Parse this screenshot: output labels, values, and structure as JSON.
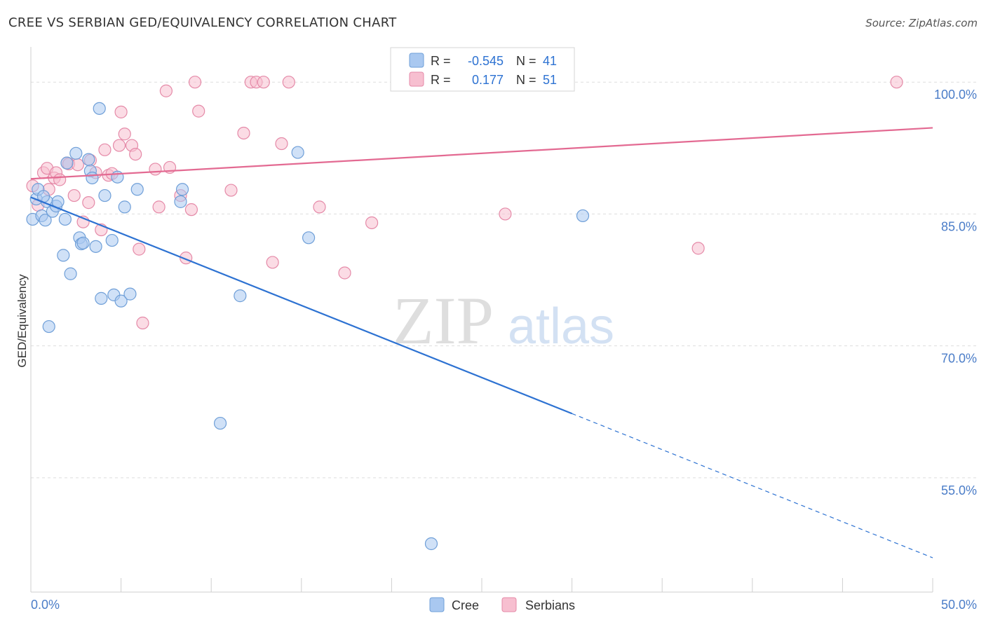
{
  "title": "CREE VS SERBIAN GED/EQUIVALENCY CORRELATION CHART",
  "source": "Source: ZipAtlas.com",
  "watermark": {
    "zip": "ZIP",
    "atlas": "atlas"
  },
  "colors": {
    "cree_fill": "#a9c8f0",
    "cree_stroke": "#6f9fd8",
    "cree_line": "#2d72d2",
    "serb_fill": "#f7bfd0",
    "serb_stroke": "#e58aa8",
    "serb_line": "#e36a92",
    "tick_label": "#4b7dc8",
    "grid": "#dddddd"
  },
  "legend": {
    "rows": [
      {
        "r_label": "R =",
        "r_value": "-0.545",
        "n_label": "N =",
        "n_value": "41"
      },
      {
        "r_label": "R =",
        "r_value": "0.177",
        "n_label": "N =",
        "n_value": "51"
      }
    ]
  },
  "bottom_legend": [
    "Cree",
    "Serbians"
  ],
  "chart_data": {
    "type": "scatter",
    "title": "CREE VS SERBIAN GED/EQUIVALENCY CORRELATION CHART",
    "xlabel": "",
    "ylabel": "GED/Equivalency",
    "xlim": [
      0,
      50
    ],
    "ylim": [
      42,
      104
    ],
    "x_tick_labels": [
      "0.0%",
      "50.0%"
    ],
    "y_ticks": [
      100,
      85,
      70,
      55
    ],
    "y_tick_labels": [
      "100.0%",
      "85.0%",
      "70.0%",
      "55.0%"
    ],
    "grid": true,
    "legend_position": "top-center",
    "series": [
      {
        "name": "Cree",
        "x": [
          0.1,
          0.3,
          0.4,
          0.6,
          0.8,
          0.9,
          1.0,
          1.2,
          1.4,
          1.5,
          1.8,
          1.9,
          2.2,
          2.5,
          2.7,
          2.8,
          2.9,
          3.2,
          3.3,
          3.4,
          3.6,
          3.8,
          3.9,
          4.1,
          4.5,
          4.6,
          4.8,
          5.0,
          5.2,
          5.5,
          5.9,
          8.3,
          8.4,
          10.5,
          11.6,
          14.8,
          15.4,
          22.2,
          30.6,
          0.7,
          2.0
        ],
        "y": [
          84.4,
          86.7,
          87.8,
          84.8,
          84.3,
          86.4,
          72.2,
          85.3,
          85.9,
          86.4,
          80.3,
          84.4,
          78.2,
          91.9,
          82.3,
          81.6,
          81.7,
          91.2,
          89.9,
          89.1,
          81.3,
          97.0,
          75.4,
          87.1,
          82.0,
          75.8,
          89.2,
          75.1,
          85.8,
          75.9,
          87.8,
          86.4,
          87.8,
          61.2,
          75.7,
          92.0,
          82.3,
          47.5,
          84.8,
          87.0,
          90.8
        ]
      },
      {
        "name": "Serbians",
        "x": [
          0.1,
          0.4,
          0.7,
          0.9,
          1.0,
          1.3,
          1.4,
          1.6,
          2.0,
          2.1,
          2.4,
          2.6,
          2.9,
          3.2,
          3.3,
          3.6,
          3.9,
          4.1,
          4.3,
          4.5,
          4.9,
          5.0,
          5.2,
          5.6,
          5.8,
          6.0,
          6.2,
          6.9,
          7.1,
          7.5,
          7.7,
          8.3,
          8.6,
          8.9,
          9.1,
          9.3,
          11.1,
          11.8,
          12.2,
          12.5,
          12.9,
          13.4,
          13.9,
          14.3,
          16.0,
          17.4,
          18.9,
          20.5,
          26.3,
          37.0,
          48.0
        ],
        "y": [
          88.2,
          86.0,
          89.7,
          90.2,
          87.8,
          89.1,
          89.7,
          88.9,
          90.8,
          90.7,
          87.1,
          90.6,
          84.1,
          86.3,
          91.1,
          89.7,
          83.2,
          92.3,
          89.4,
          89.6,
          92.8,
          96.6,
          94.1,
          92.8,
          91.8,
          81.0,
          72.6,
          90.1,
          85.8,
          99.0,
          90.3,
          87.1,
          80.0,
          85.5,
          100.0,
          96.7,
          87.7,
          94.2,
          100.0,
          100.0,
          100.0,
          79.5,
          93.0,
          100.0,
          85.8,
          78.3,
          84.0,
          100.0,
          85.0,
          81.1,
          100.0
        ]
      }
    ],
    "trend_lines": [
      {
        "name": "Cree",
        "x": [
          0,
          30.0
        ],
        "y": [
          86.9,
          62.3
        ],
        "dashed_to": [
          50,
          45.9
        ]
      },
      {
        "name": "Serbians",
        "x": [
          0,
          50
        ],
        "y": [
          89.0,
          94.8
        ]
      }
    ]
  }
}
